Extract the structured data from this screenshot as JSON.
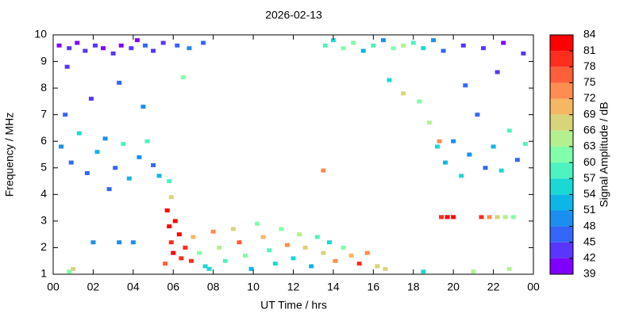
{
  "chart_data": {
    "type": "scatter",
    "title": "2026-02-13",
    "x_label": "UT Time / hrs",
    "y_label": "Frequency / MHz",
    "colorbar_label": "Signal Amplitude / dB",
    "xlim": [
      0,
      24
    ],
    "ylim": [
      1,
      10
    ],
    "xticks": [
      {
        "value": 0,
        "label": "00"
      },
      {
        "value": 2,
        "label": "02"
      },
      {
        "value": 4,
        "label": "04"
      },
      {
        "value": 6,
        "label": "06"
      },
      {
        "value": 8,
        "label": "08"
      },
      10,
      12,
      14,
      16,
      18,
      20,
      22,
      {
        "value": 24,
        "label": "00"
      }
    ],
    "yticks": [
      1,
      2,
      3,
      4,
      5,
      6,
      7,
      8,
      9,
      10
    ],
    "colorbar_ticks": [
      39,
      42,
      45,
      48,
      51,
      54,
      57,
      60,
      63,
      66,
      69,
      72,
      75,
      78,
      81,
      84
    ],
    "colors": [
      "#8000ff",
      "#5a35fd",
      "#3366f9",
      "#1a8ff0",
      "#0cb6e6",
      "#1ad9d4",
      "#4df3c0",
      "#80feaa",
      "#b3f190",
      "#d8d47a",
      "#f6b765",
      "#ff8c50",
      "#ff5e3a",
      "#ff2d1e",
      "#ff0000"
    ],
    "x": [
      0.3,
      0.8,
      1.2,
      1.6,
      2.1,
      2.5,
      3.0,
      3.4,
      3.9,
      4.2,
      4.6,
      5.0,
      5.5,
      6.2,
      6.8,
      7.5,
      0.4,
      0.9,
      1.3,
      1.7,
      2.2,
      2.6,
      3.1,
      3.5,
      3.8,
      4.3,
      4.7,
      5.0,
      5.3,
      0.6,
      1.9,
      3.3,
      4.5,
      6.5,
      2.8,
      0.7,
      5.7,
      5.8,
      5.9,
      6.0,
      6.1,
      6.3,
      6.4,
      5.6,
      6.6,
      5.8,
      5.9,
      7.0,
      7.3,
      7.6,
      8.0,
      8.3,
      8.6,
      9.0,
      9.3,
      9.6,
      9.9,
      10.2,
      10.5,
      10.8,
      11.1,
      11.4,
      11.7,
      12.0,
      12.3,
      12.6,
      12.9,
      13.2,
      13.5,
      13.8,
      14.1,
      14.5,
      14.9,
      15.3,
      15.7,
      16.2,
      16.6,
      6.9,
      7.8,
      13.6,
      14.0,
      14.5,
      15.0,
      15.5,
      16.0,
      16.5,
      17.0,
      17.5,
      18.0,
      18.5,
      19.0,
      19.5,
      20.5,
      21.5,
      22.5,
      23.5,
      18.3,
      18.8,
      19.2,
      19.6,
      20.0,
      20.4,
      20.8,
      21.2,
      21.6,
      22.0,
      22.4,
      22.8,
      23.2,
      23.6,
      19.3,
      20.6,
      22.2,
      17.5,
      16.8,
      19.4,
      19.7,
      20.0,
      21.4,
      21.8,
      22.2,
      22.6,
      23.0,
      0.8,
      1.0,
      4.0,
      3.3,
      2.0,
      21.0,
      22.8,
      18.5,
      13.5
    ],
    "y": [
      9.6,
      9.5,
      9.7,
      9.4,
      9.6,
      9.5,
      9.3,
      9.6,
      9.5,
      9.8,
      9.6,
      9.4,
      9.7,
      9.6,
      9.5,
      9.7,
      5.8,
      5.2,
      6.3,
      4.8,
      5.6,
      6.1,
      5.0,
      5.9,
      4.6,
      5.4,
      6.0,
      5.1,
      4.7,
      7.0,
      7.6,
      8.2,
      7.3,
      8.4,
      4.2,
      8.8,
      3.4,
      2.8,
      2.2,
      1.8,
      3.0,
      2.5,
      1.6,
      1.4,
      2.0,
      4.5,
      3.9,
      2.4,
      1.8,
      1.3,
      2.6,
      2.0,
      1.5,
      2.7,
      2.2,
      1.7,
      1.2,
      2.9,
      2.4,
      1.9,
      1.4,
      2.7,
      2.1,
      1.6,
      2.5,
      2.0,
      1.3,
      2.4,
      1.8,
      2.2,
      1.5,
      2.0,
      1.7,
      1.4,
      1.8,
      1.3,
      1.2,
      1.5,
      1.2,
      9.6,
      9.8,
      9.5,
      9.7,
      9.4,
      9.6,
      9.8,
      9.5,
      9.6,
      9.7,
      9.5,
      9.8,
      9.4,
      9.6,
      9.5,
      9.7,
      9.3,
      7.5,
      6.7,
      5.8,
      5.2,
      6.0,
      4.7,
      5.5,
      7.0,
      5.0,
      5.8,
      4.9,
      6.4,
      5.3,
      5.9,
      6.0,
      8.1,
      8.6,
      7.8,
      8.3,
      3.15,
      3.15,
      3.15,
      3.15,
      3.15,
      3.15,
      3.15,
      3.15,
      1.1,
      1.2,
      2.2,
      2.2,
      2.2,
      1.1,
      1.2,
      1.1,
      4.9
    ],
    "values": [
      41,
      43,
      40,
      42,
      44,
      41,
      42,
      40,
      43,
      41,
      45,
      42,
      44,
      47,
      50,
      45,
      50,
      47,
      55,
      46,
      52,
      49,
      45,
      57,
      51,
      48,
      58,
      46,
      53,
      47,
      44,
      46,
      48,
      60,
      45,
      43,
      82,
      83,
      80,
      84,
      81,
      82,
      79,
      76,
      78,
      58,
      66,
      70,
      62,
      55,
      73,
      64,
      57,
      66,
      75,
      60,
      52,
      62,
      70,
      58,
      54,
      60,
      72,
      56,
      64,
      68,
      53,
      58,
      66,
      55,
      74,
      62,
      70,
      78,
      72,
      68,
      66,
      80,
      56,
      58,
      55,
      62,
      60,
      52,
      57,
      49,
      61,
      64,
      59,
      56,
      48,
      45,
      43,
      42,
      41,
      42,
      60,
      63,
      55,
      52,
      50,
      54,
      49,
      47,
      46,
      51,
      55,
      57,
      47,
      59,
      74,
      45,
      44,
      68,
      55,
      80,
      82,
      81,
      79,
      73,
      66,
      64,
      62,
      62,
      66,
      50,
      49,
      48,
      64,
      65,
      55,
      72
    ]
  }
}
